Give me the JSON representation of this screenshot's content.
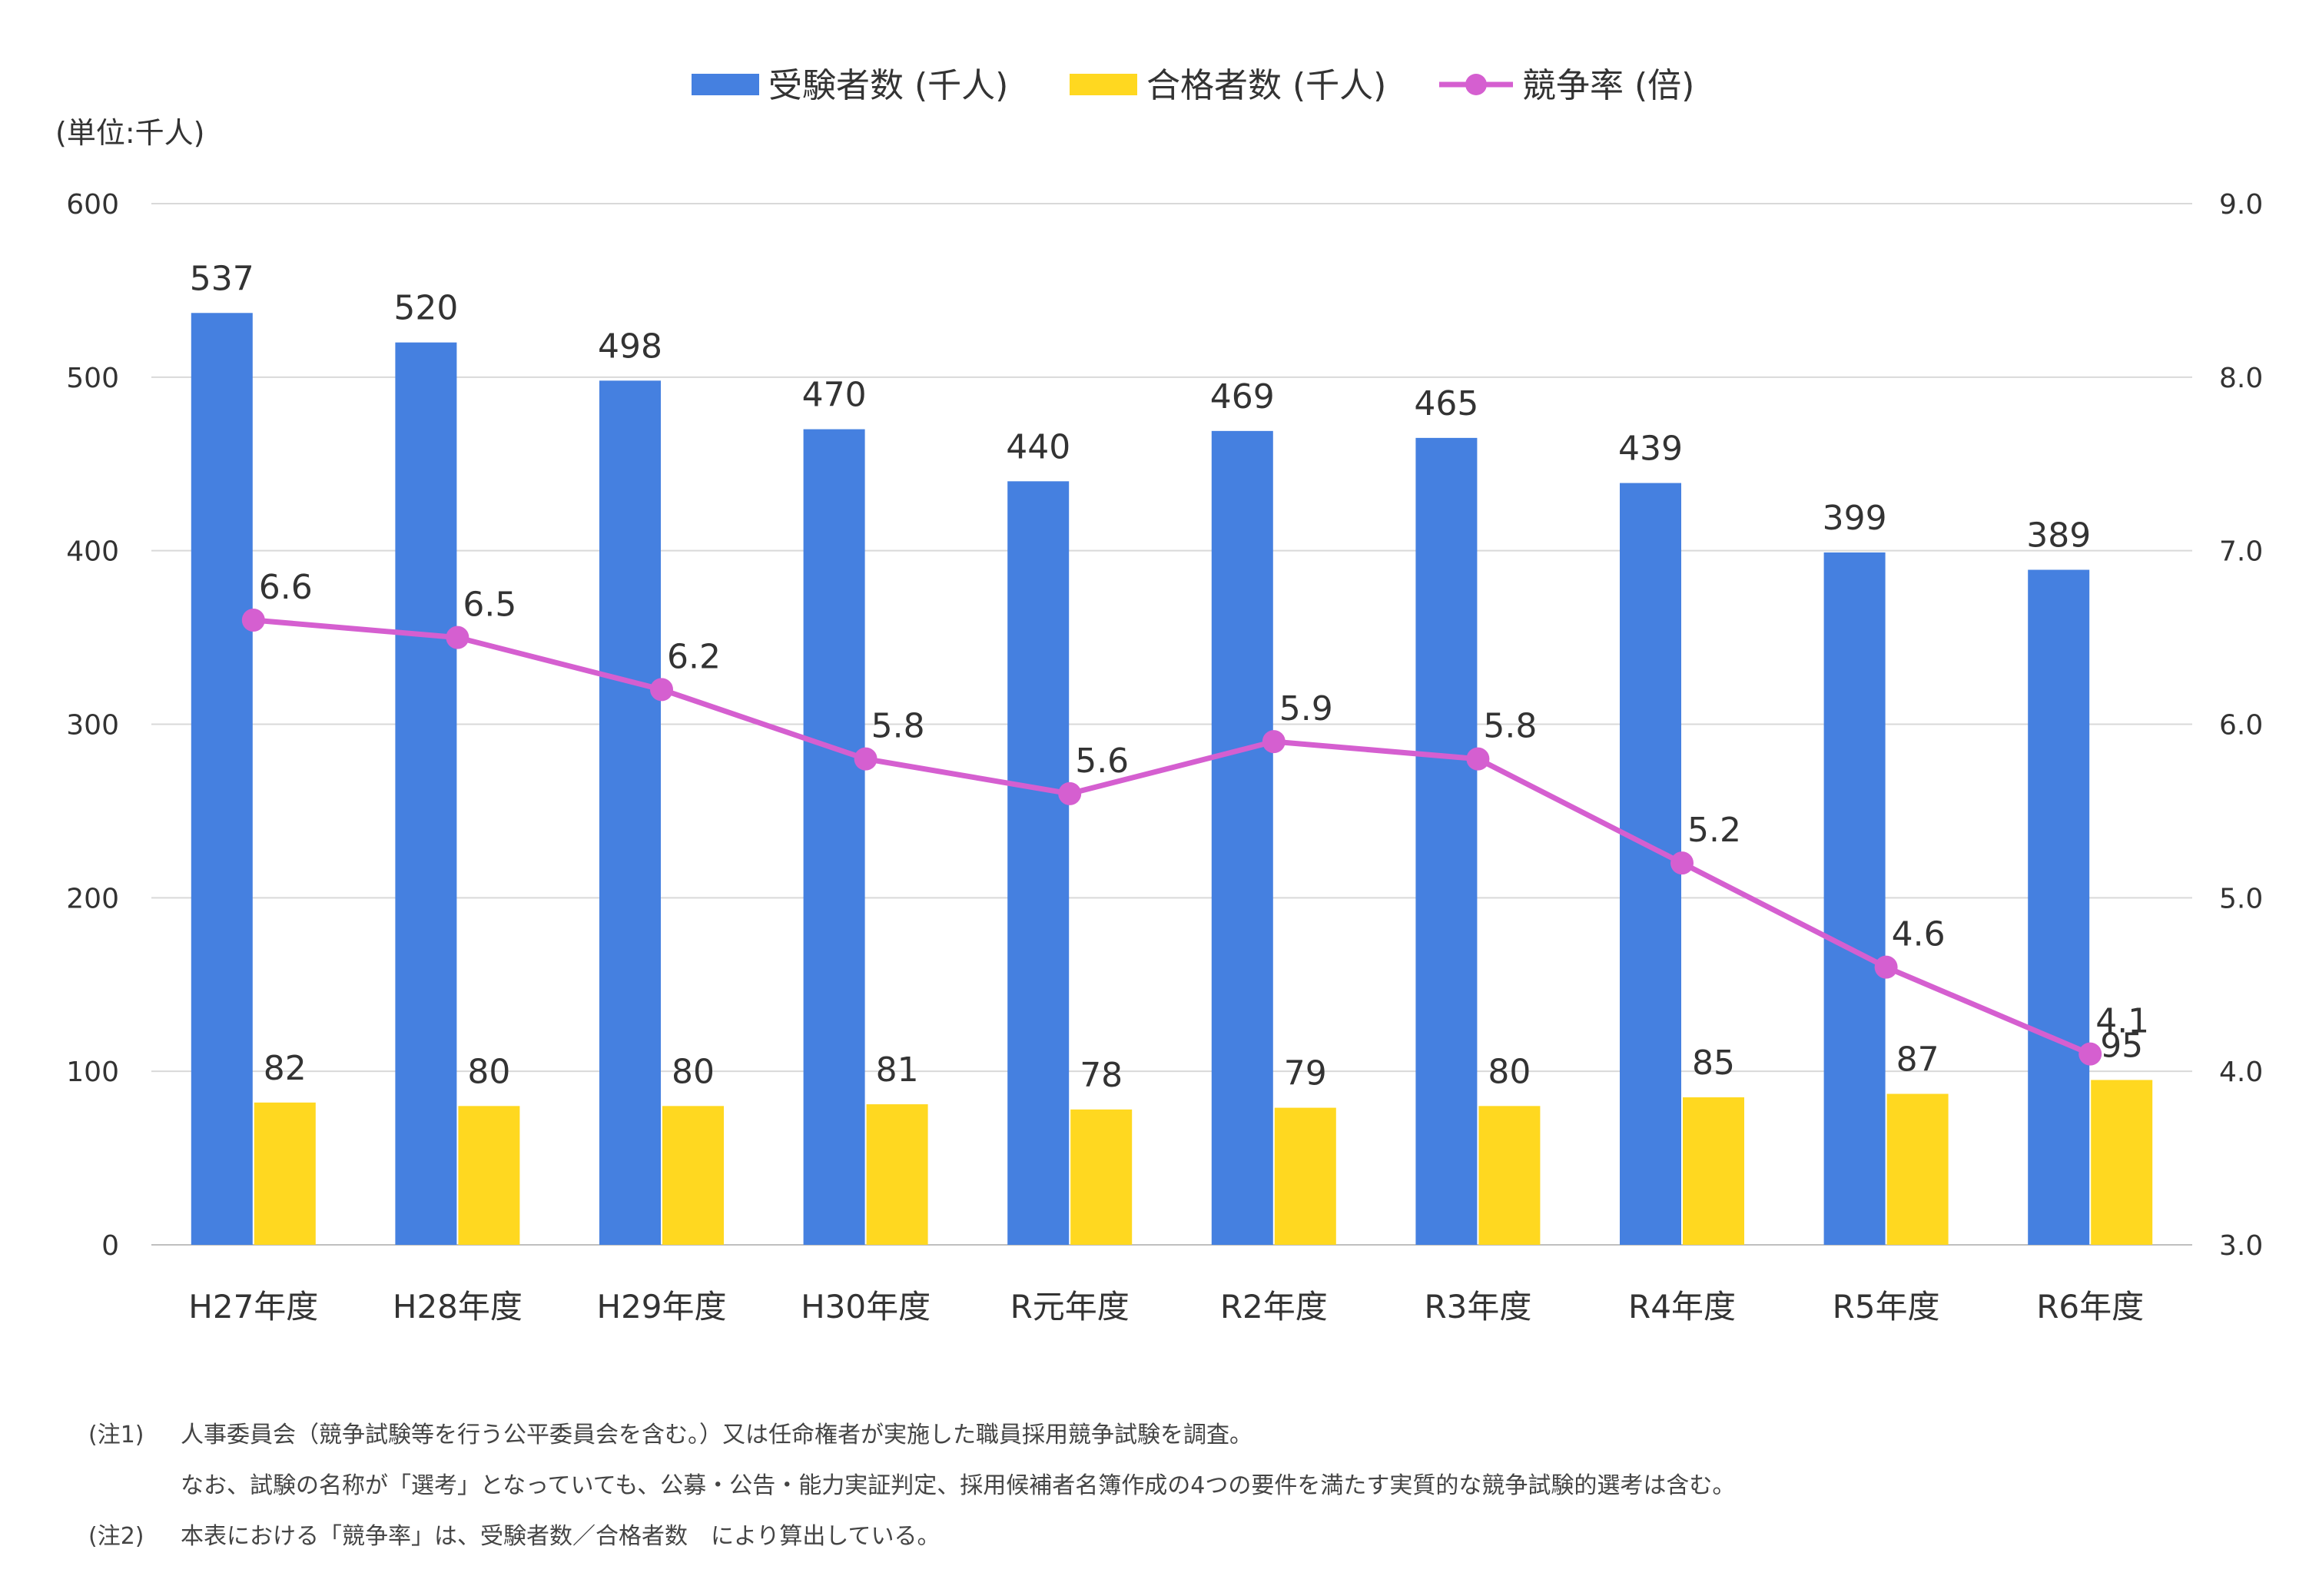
{
  "chart_data": {
    "type": "bar",
    "categories": [
      "H27年度",
      "H28年度",
      "H29年度",
      "H30年度",
      "R元年度",
      "R2年度",
      "R3年度",
      "R4年度",
      "R5年度",
      "R6年度"
    ],
    "series": [
      {
        "name": "受験者数 (千人)",
        "type": "bar",
        "axis": "left",
        "color": "#4580E0",
        "values": [
          537,
          520,
          498,
          470,
          440,
          469,
          465,
          439,
          399,
          389
        ]
      },
      {
        "name": "合格者数 (千人)",
        "type": "bar",
        "axis": "left",
        "color": "#FFD820",
        "values": [
          82,
          80,
          80,
          81,
          78,
          79,
          80,
          85,
          87,
          95
        ]
      },
      {
        "name": "競争率 (倍)",
        "type": "line",
        "axis": "right",
        "color": "#D55FD0",
        "values": [
          6.6,
          6.5,
          6.2,
          5.8,
          5.6,
          5.9,
          5.8,
          5.2,
          4.6,
          4.1
        ]
      }
    ],
    "unit_label": "(単位:千人)",
    "y_left": {
      "min": 0,
      "max": 600,
      "ticks": [
        "0",
        "100",
        "200",
        "300",
        "400",
        "500",
        "600"
      ]
    },
    "y_right": {
      "min": 3.0,
      "max": 9.0,
      "ticks": [
        "3.0",
        "4.0",
        "5.0",
        "6.0",
        "7.0",
        "8.0",
        "9.0"
      ]
    },
    "grid": true,
    "legend_position": "top-center"
  },
  "notes": {
    "note1_label": "(注1)",
    "note1_line1": "人事委員会（競争試験等を行う公平委員会を含む。）又は任命権者が実施した職員採用競争試験を調査。",
    "note1_line2": "なお、試験の名称が「選考」となっていても、公募・公告・能力実証判定、採用候補者名簿作成の4つの要件を満たす実質的な競争試験的選考は含む。",
    "note2_label": "(注2)",
    "note2_text": "本表における「競争率」は、受験者数／合格者数　により算出している。"
  }
}
